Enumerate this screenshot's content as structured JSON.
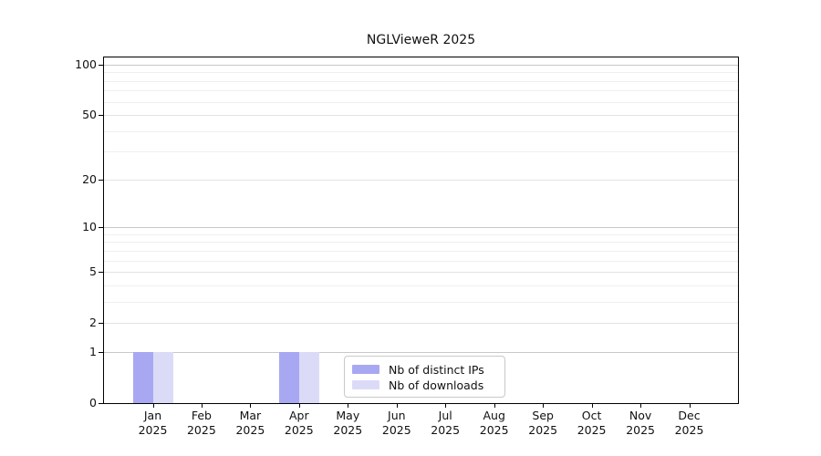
{
  "chart_data": {
    "type": "bar",
    "title": "NGLVieweR 2025",
    "xlabel": "",
    "ylabel": "",
    "yscale": "log1p",
    "ylim": [
      0,
      110
    ],
    "grid": true,
    "yticks": [
      0,
      1,
      2,
      5,
      10,
      20,
      50,
      100
    ],
    "minor_yticks": [
      3,
      4,
      6,
      7,
      8,
      9,
      30,
      40,
      60,
      70,
      80,
      90
    ],
    "categories": [
      {
        "month": "Jan",
        "year": "2025"
      },
      {
        "month": "Feb",
        "year": "2025"
      },
      {
        "month": "Mar",
        "year": "2025"
      },
      {
        "month": "Apr",
        "year": "2025"
      },
      {
        "month": "May",
        "year": "2025"
      },
      {
        "month": "Jun",
        "year": "2025"
      },
      {
        "month": "Jul",
        "year": "2025"
      },
      {
        "month": "Aug",
        "year": "2025"
      },
      {
        "month": "Sep",
        "year": "2025"
      },
      {
        "month": "Oct",
        "year": "2025"
      },
      {
        "month": "Nov",
        "year": "2025"
      },
      {
        "month": "Dec",
        "year": "2025"
      }
    ],
    "series": [
      {
        "name": "Nb of distinct IPs",
        "color": "#a8a8f2",
        "values": [
          1,
          0,
          0,
          1,
          0,
          0,
          0,
          0,
          0,
          0,
          0,
          0
        ]
      },
      {
        "name": "Nb of downloads",
        "color": "#dbdbf8",
        "values": [
          1,
          0,
          0,
          1,
          0,
          0,
          0,
          0,
          0,
          0,
          0,
          0
        ]
      }
    ],
    "legend": {
      "position": "lower center"
    }
  }
}
